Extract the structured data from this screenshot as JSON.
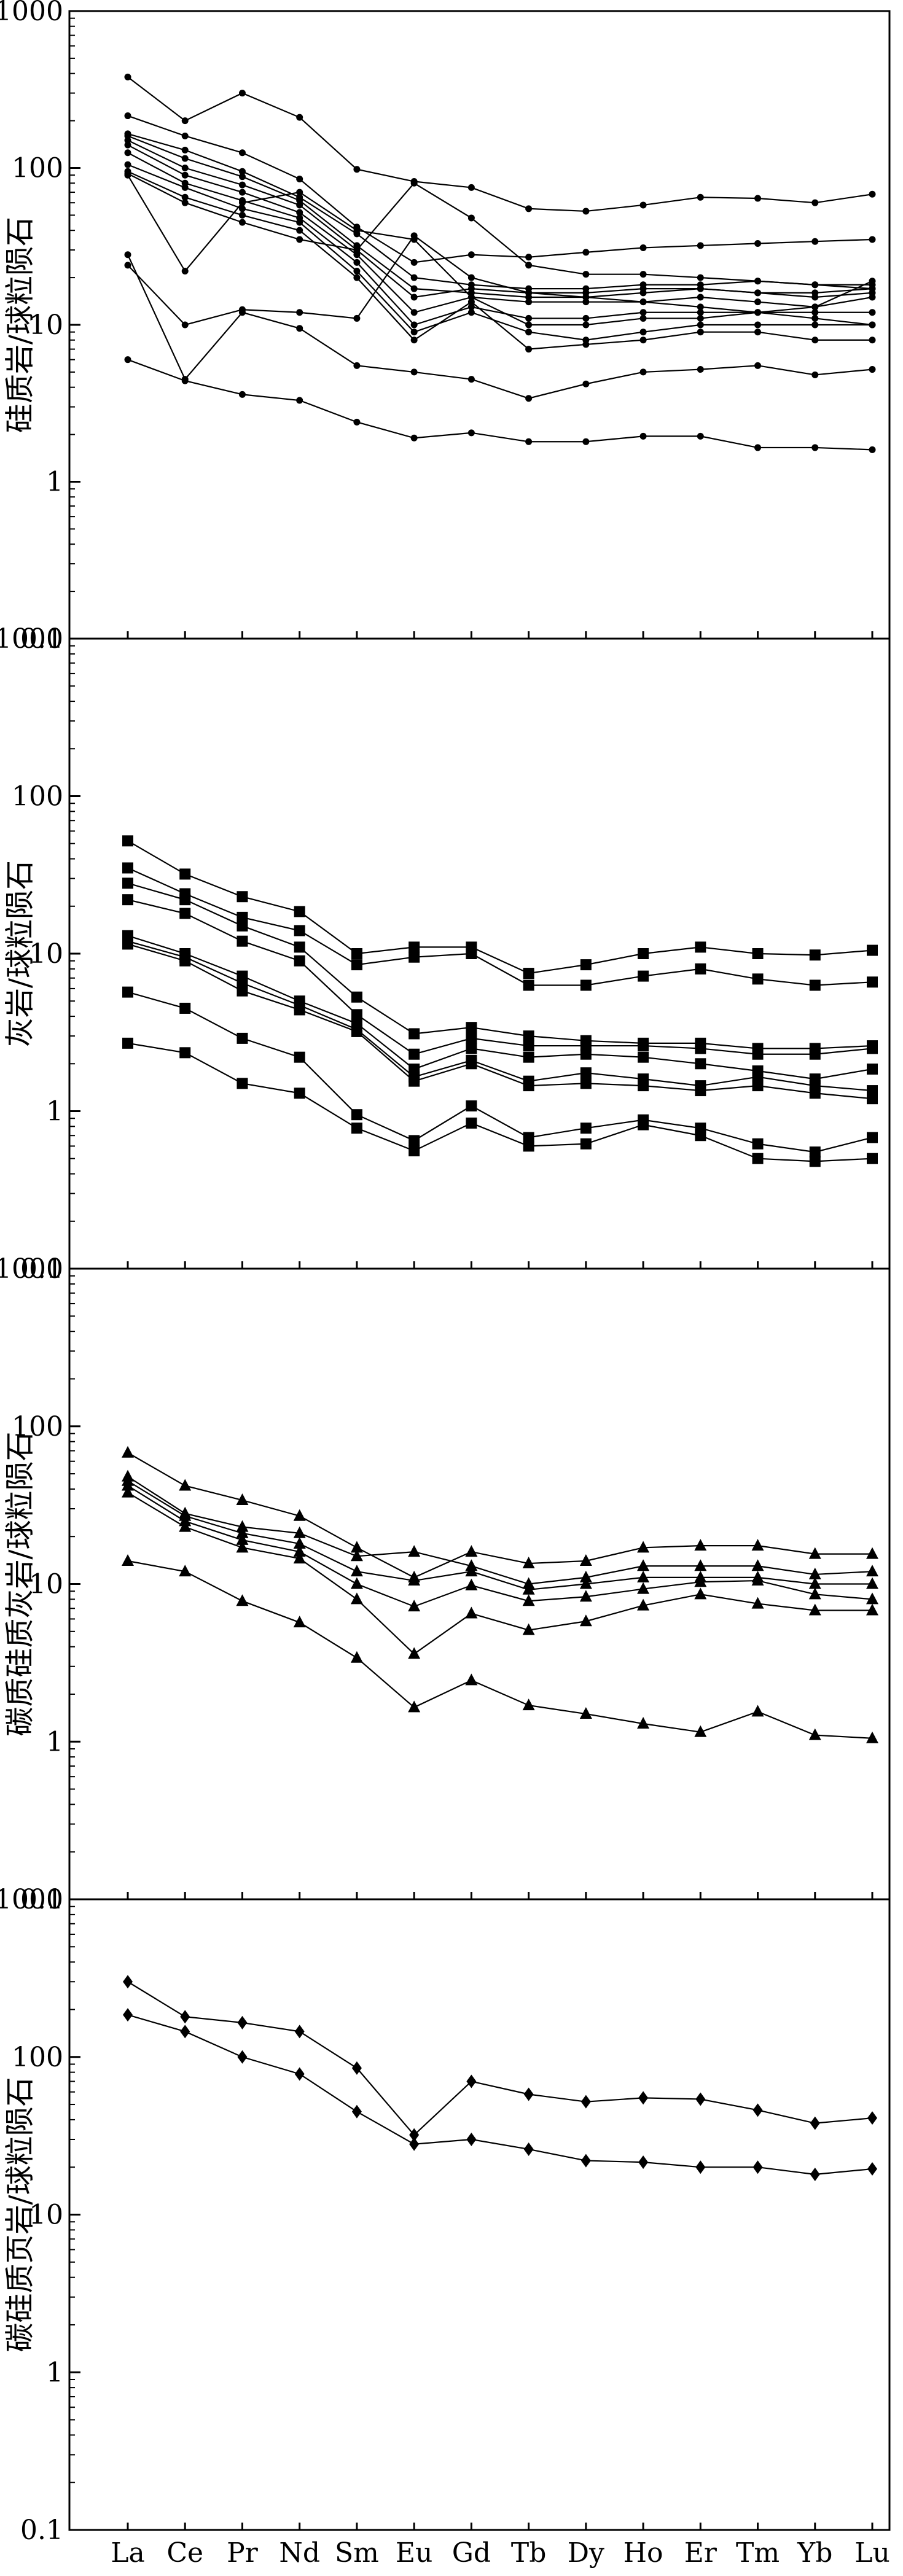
{
  "chart_data": [
    {
      "type": "line",
      "ylabel": "硅质岩/球粒陨石",
      "yscale": "log",
      "ylim": [
        0.1,
        1000
      ],
      "yticks": [
        "0.1",
        "1",
        "10",
        "100",
        "1000"
      ],
      "marker": "dot",
      "categories": [
        "La",
        "Ce",
        "Pr",
        "Nd",
        "Sm",
        "Eu",
        "Gd",
        "Tb",
        "Dy",
        "Ho",
        "Er",
        "Tm",
        "Yb",
        "Lu"
      ],
      "series": [
        {
          "values": [
            380,
            200,
            300,
            210,
            98,
            82,
            75,
            55,
            53,
            58,
            65,
            64,
            60,
            68
          ]
        },
        {
          "values": [
            215,
            160,
            125,
            85,
            42,
            25,
            28,
            27,
            29,
            31,
            32,
            33,
            34,
            35
          ]
        },
        {
          "values": [
            165,
            130,
            95,
            65,
            38,
            20,
            18,
            17,
            17,
            18,
            18,
            19,
            18,
            18
          ]
        },
        {
          "values": [
            160,
            115,
            88,
            62,
            32,
            17,
            16,
            15,
            15,
            16,
            17,
            16,
            15,
            16
          ]
        },
        {
          "values": [
            150,
            100,
            78,
            58,
            30,
            15,
            17,
            16,
            16,
            17,
            17,
            16,
            16,
            17
          ]
        },
        {
          "values": [
            140,
            90,
            70,
            52,
            28,
            12,
            15,
            14,
            14,
            14,
            15,
            14,
            13,
            15
          ]
        },
        {
          "values": [
            125,
            80,
            62,
            48,
            25,
            10,
            13,
            11,
            11,
            12,
            12,
            12,
            12,
            12
          ]
        },
        {
          "values": [
            105,
            75,
            55,
            45,
            22,
            9,
            12,
            9,
            8,
            9,
            10,
            10,
            10,
            10
          ]
        },
        {
          "values": [
            95,
            65,
            50,
            40,
            20,
            8,
            14,
            7,
            7.5,
            8,
            9,
            9,
            8,
            8
          ]
        },
        {
          "values": [
            92,
            60,
            45,
            35,
            30,
            80,
            48,
            24,
            21,
            21,
            20,
            19,
            18,
            17
          ]
        },
        {
          "values": [
            90,
            22,
            60,
            70,
            40,
            35,
            15,
            10,
            10,
            11,
            11,
            12,
            13,
            19
          ]
        },
        {
          "values": [
            28,
            4.5,
            12,
            9.5,
            5.5,
            5,
            4.5,
            3.4,
            4.2,
            5,
            5.2,
            5.5,
            4.8,
            5.2
          ]
        },
        {
          "values": [
            24,
            10,
            12.5,
            12,
            11,
            37,
            20,
            16,
            15,
            14,
            13,
            12,
            11,
            10
          ]
        },
        {
          "values": [
            6,
            4.4,
            3.6,
            3.3,
            2.4,
            1.9,
            2.05,
            1.8,
            1.8,
            1.95,
            1.95,
            1.65,
            1.65,
            1.6
          ]
        }
      ]
    },
    {
      "type": "line",
      "ylabel": "灰岩/球粒陨石",
      "yscale": "log",
      "ylim": [
        0.1,
        1000
      ],
      "yticks": [
        "0.1",
        "1",
        "10",
        "100",
        "1000"
      ],
      "marker": "square",
      "categories": [
        "La",
        "Ce",
        "Pr",
        "Nd",
        "Sm",
        "Eu",
        "Gd",
        "Tb",
        "Dy",
        "Ho",
        "Er",
        "Tm",
        "Yb",
        "Lu"
      ],
      "series": [
        {
          "values": [
            52,
            32,
            23,
            18.5,
            10,
            11,
            11,
            7.5,
            8.5,
            10,
            11,
            10,
            9.8,
            10.5
          ]
        },
        {
          "values": [
            35,
            24,
            17,
            14,
            8.5,
            9.5,
            10,
            6.3,
            6.3,
            7.2,
            8,
            6.9,
            6.3,
            6.6
          ]
        },
        {
          "values": [
            28,
            22,
            15,
            11,
            5.3,
            3.1,
            3.4,
            3,
            2.8,
            2.7,
            2.7,
            2.5,
            2.5,
            2.6
          ]
        },
        {
          "values": [
            22,
            18,
            12,
            9,
            4.1,
            2.3,
            2.9,
            2.6,
            2.6,
            2.6,
            2.5,
            2.3,
            2.3,
            2.5
          ]
        },
        {
          "values": [
            13,
            10,
            7.2,
            5,
            3.6,
            1.85,
            2.5,
            2.2,
            2.3,
            2.2,
            2,
            1.8,
            1.6,
            1.85
          ]
        },
        {
          "values": [
            12,
            9.5,
            6.5,
            4.7,
            3.3,
            1.65,
            2.1,
            1.55,
            1.75,
            1.6,
            1.45,
            1.65,
            1.45,
            1.35
          ]
        },
        {
          "values": [
            11.5,
            9,
            5.8,
            4.4,
            3.2,
            1.55,
            2,
            1.45,
            1.5,
            1.45,
            1.35,
            1.45,
            1.3,
            1.2
          ]
        },
        {
          "values": [
            5.7,
            4.5,
            2.9,
            2.2,
            0.95,
            0.65,
            1.08,
            0.68,
            0.78,
            0.88,
            0.78,
            0.62,
            0.55,
            0.68
          ]
        },
        {
          "values": [
            2.7,
            2.35,
            1.5,
            1.3,
            0.78,
            0.56,
            0.84,
            0.6,
            0.62,
            0.82,
            0.7,
            0.5,
            0.48,
            0.5
          ]
        }
      ]
    },
    {
      "type": "line",
      "ylabel": "碳质硅质灰岩/球粒陨石",
      "yscale": "log",
      "ylim": [
        0.1,
        1000
      ],
      "yticks": [
        "0.1",
        "1",
        "10",
        "100",
        "1000"
      ],
      "marker": "triangle",
      "categories": [
        "La",
        "Ce",
        "Pr",
        "Nd",
        "Sm",
        "Eu",
        "Gd",
        "Tb",
        "Dy",
        "Ho",
        "Er",
        "Tm",
        "Yb",
        "Lu"
      ],
      "series": [
        {
          "values": [
            68,
            42,
            34,
            27,
            17,
            11,
            16,
            13.5,
            14,
            17,
            17.5,
            17.5,
            15.5,
            15.5
          ]
        },
        {
          "values": [
            48,
            28,
            23,
            21,
            15,
            16,
            13,
            10,
            11,
            13,
            13,
            13,
            11.5,
            12
          ]
        },
        {
          "values": [
            45,
            27,
            21,
            18,
            12,
            10.5,
            12,
            9.2,
            10,
            11,
            11,
            11,
            10,
            10
          ]
        },
        {
          "values": [
            42,
            25,
            19,
            16,
            10,
            7.2,
            9.8,
            7.8,
            8.3,
            9.3,
            10.3,
            10.5,
            8.6,
            8
          ]
        },
        {
          "values": [
            38,
            23,
            17,
            14.5,
            8,
            3.6,
            6.5,
            5.1,
            5.8,
            7.3,
            8.6,
            7.5,
            6.8,
            6.8
          ]
        },
        {
          "values": [
            14,
            12,
            7.8,
            5.7,
            3.4,
            1.65,
            2.45,
            1.7,
            1.5,
            1.3,
            1.15,
            1.55,
            1.1,
            1.05
          ]
        }
      ]
    },
    {
      "type": "line",
      "ylabel": "碳硅质页岩/球粒陨石",
      "yscale": "log",
      "ylim": [
        0.1,
        1000
      ],
      "yticks": [
        "0.1",
        "1",
        "10",
        "100",
        "1000"
      ],
      "marker": "diamond",
      "categories": [
        "La",
        "Ce",
        "Pr",
        "Nd",
        "Sm",
        "Eu",
        "Gd",
        "Tb",
        "Dy",
        "Ho",
        "Er",
        "Tm",
        "Yb",
        "Lu"
      ],
      "series": [
        {
          "values": [
            300,
            180,
            165,
            145,
            85,
            32,
            70,
            58,
            52,
            55,
            54,
            46,
            38,
            41
          ]
        },
        {
          "values": [
            185,
            145,
            100,
            78,
            45,
            28,
            30,
            26,
            22,
            21.5,
            20,
            20,
            18,
            19.5
          ]
        }
      ]
    }
  ]
}
